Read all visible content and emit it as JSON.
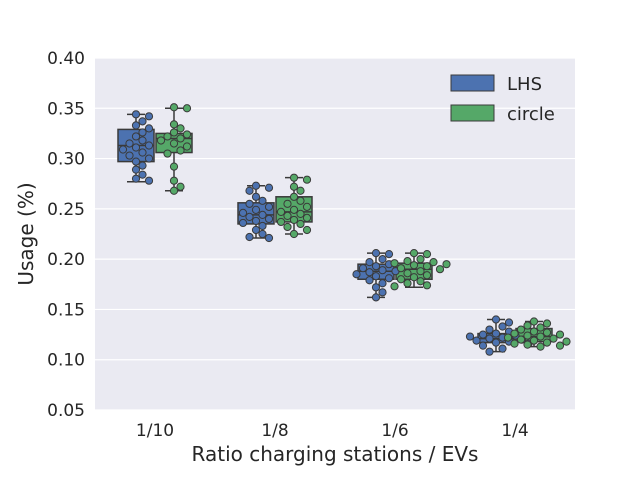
{
  "chart_data": {
    "type": "box",
    "xlabel": "Ratio charging stations / EVs",
    "ylabel": "Usage (%)",
    "categories": [
      "1/10",
      "1/8",
      "1/6",
      "1/4"
    ],
    "ylim": [
      0.05,
      0.4
    ],
    "yticks": [
      "0.05",
      "0.10",
      "0.15",
      "0.20",
      "0.25",
      "0.30",
      "0.35",
      "0.40"
    ],
    "grid": true,
    "legend_position": "top-right",
    "style": {
      "background": "#EAEAF2",
      "grid_color": "#ffffff",
      "edge_color": "#3a3a3a"
    },
    "series": [
      {
        "name": "LHS",
        "color": "#4C72B0",
        "boxes": [
          {
            "whisker_low": 0.277,
            "q1": 0.297,
            "median": 0.313,
            "q3": 0.329,
            "whisker_high": 0.344
          },
          {
            "whisker_low": 0.221,
            "q1": 0.235,
            "median": 0.244,
            "q3": 0.256,
            "whisker_high": 0.273
          },
          {
            "whisker_low": 0.162,
            "q1": 0.18,
            "median": 0.188,
            "q3": 0.195,
            "whisker_high": 0.206
          },
          {
            "whisker_low": 0.108,
            "q1": 0.117,
            "median": 0.121,
            "q3": 0.126,
            "whisker_high": 0.14
          }
        ],
        "points": [
          [
            0.344,
            0.342,
            0.337,
            0.333,
            0.33,
            0.326,
            0.322,
            0.318,
            0.315,
            0.313,
            0.311,
            0.309,
            0.306,
            0.303,
            0.3,
            0.297,
            0.293,
            0.289,
            0.284,
            0.28,
            0.278
          ],
          [
            0.273,
            0.271,
            0.268,
            0.262,
            0.258,
            0.255,
            0.252,
            0.249,
            0.246,
            0.244,
            0.242,
            0.24,
            0.238,
            0.236,
            0.233,
            0.229,
            0.225,
            0.222,
            0.221
          ],
          [
            0.206,
            0.205,
            0.2,
            0.197,
            0.195,
            0.193,
            0.191,
            0.189,
            0.188,
            0.187,
            0.185,
            0.183,
            0.181,
            0.179,
            0.176,
            0.172,
            0.167,
            0.162
          ],
          [
            0.14,
            0.137,
            0.133,
            0.13,
            0.128,
            0.126,
            0.125,
            0.124,
            0.123,
            0.122,
            0.121,
            0.12,
            0.119,
            0.118,
            0.117,
            0.116,
            0.114,
            0.111,
            0.108
          ]
        ]
      },
      {
        "name": "circle",
        "color": "#55A868",
        "boxes": [
          {
            "whisker_low": 0.268,
            "q1": 0.306,
            "median": 0.32,
            "q3": 0.325,
            "whisker_high": 0.35
          },
          {
            "whisker_low": 0.225,
            "q1": 0.237,
            "median": 0.247,
            "q3": 0.262,
            "whisker_high": 0.281
          },
          {
            "whisker_low": 0.172,
            "q1": 0.18,
            "median": 0.19,
            "q3": 0.196,
            "whisker_high": 0.206
          },
          {
            "whisker_low": 0.113,
            "q1": 0.118,
            "median": 0.123,
            "q3": 0.131,
            "whisker_high": 0.138
          }
        ],
        "points": [
          [
            0.351,
            0.35,
            0.334,
            0.33,
            0.326,
            0.324,
            0.322,
            0.32,
            0.318,
            0.315,
            0.312,
            0.308,
            0.305,
            0.292,
            0.278,
            0.272,
            0.268
          ],
          [
            0.281,
            0.279,
            0.272,
            0.268,
            0.262,
            0.258,
            0.255,
            0.252,
            0.249,
            0.247,
            0.245,
            0.243,
            0.241,
            0.239,
            0.237,
            0.235,
            0.232,
            0.229,
            0.225
          ],
          [
            0.206,
            0.205,
            0.2,
            0.198,
            0.197,
            0.196,
            0.195,
            0.194,
            0.193,
            0.191,
            0.19,
            0.188,
            0.186,
            0.184,
            0.182,
            0.18,
            0.178,
            0.176,
            0.174,
            0.173
          ],
          [
            0.138,
            0.136,
            0.134,
            0.132,
            0.13,
            0.128,
            0.127,
            0.126,
            0.125,
            0.124,
            0.123,
            0.122,
            0.121,
            0.12,
            0.119,
            0.118,
            0.117,
            0.116,
            0.115,
            0.114,
            0.113
          ]
        ]
      }
    ]
  }
}
